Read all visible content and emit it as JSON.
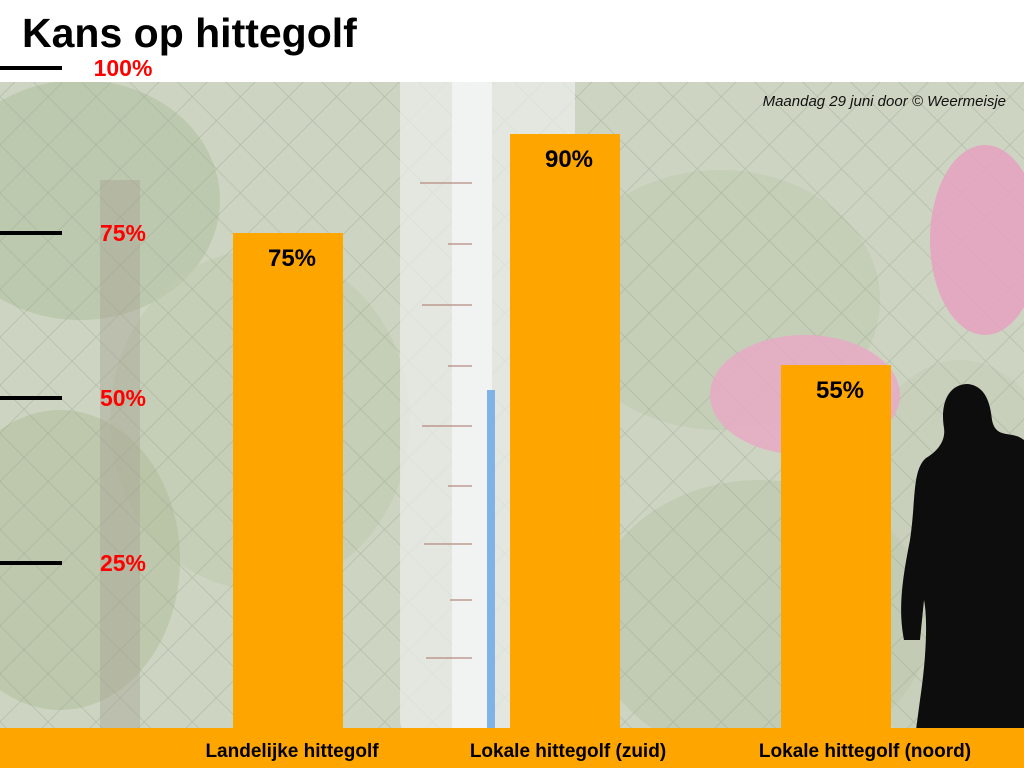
{
  "header": {
    "title": "Kans op hittegolf",
    "credit": "Maandag 29 juni door © Weermeisje"
  },
  "colors": {
    "bar": "#FFA500",
    "tick_label": "#FF0000"
  },
  "chart_data": {
    "type": "bar",
    "title": "Kans op hittegolf",
    "categories": [
      "Landelijke hittegolf",
      "Lokale hittegolf (zuid)",
      "Lokale hittegolf (noord)"
    ],
    "values": [
      75,
      90,
      55
    ],
    "value_labels": [
      "75%",
      "90%",
      "55%"
    ],
    "yticks": [
      25,
      50,
      75,
      100
    ],
    "ytick_labels": [
      "25%",
      "50%",
      "75%",
      "100%"
    ],
    "ylim": [
      0,
      100
    ],
    "grid": false,
    "legend": "none"
  }
}
